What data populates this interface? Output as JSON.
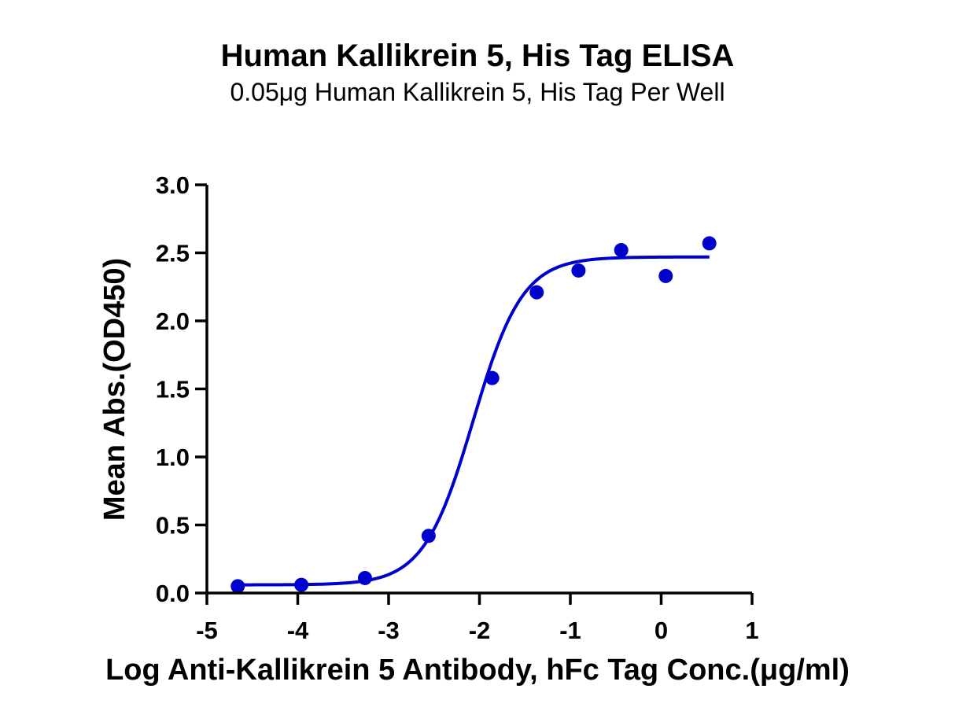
{
  "chart_data": {
    "type": "scatter",
    "title": "Human Kallikrein 5, His Tag ELISA",
    "subtitle": "0.05μg Human Kallikrein 5, His Tag Per Well",
    "xlabel": "Log Anti-Kallikrein 5 Antibody, hFc Tag Conc.(μg/ml)",
    "ylabel": "Mean Abs.(OD450)",
    "xlim": [
      -5,
      1
    ],
    "ylim": [
      0,
      3
    ],
    "xticks": [
      -5,
      -4,
      -3,
      -2,
      -1,
      0,
      1
    ],
    "yticks": [
      0.0,
      0.5,
      1.0,
      1.5,
      2.0,
      2.5,
      3.0
    ],
    "xtick_labels": [
      "-5",
      "-4",
      "-3",
      "-2",
      "-1",
      "0",
      "1"
    ],
    "ytick_labels": [
      "0.0",
      "0.5",
      "1.0",
      "1.5",
      "2.0",
      "2.5",
      "3.0"
    ],
    "grid": false,
    "color": "#0000CC",
    "series": [
      {
        "x": [
          -4.66,
          -3.96,
          -3.26,
          -2.56,
          -1.86,
          -1.37,
          -0.91,
          -0.44,
          0.05,
          0.53
        ],
        "y": [
          0.05,
          0.06,
          0.11,
          0.42,
          1.58,
          2.21,
          2.37,
          2.52,
          2.33,
          2.57
        ]
      }
    ],
    "fit": {
      "model": "4PL",
      "bottom": 0.06,
      "top": 2.47,
      "logEC50": -2.07,
      "hill": 1.6,
      "x_range": [
        -4.66,
        0.53
      ]
    }
  }
}
